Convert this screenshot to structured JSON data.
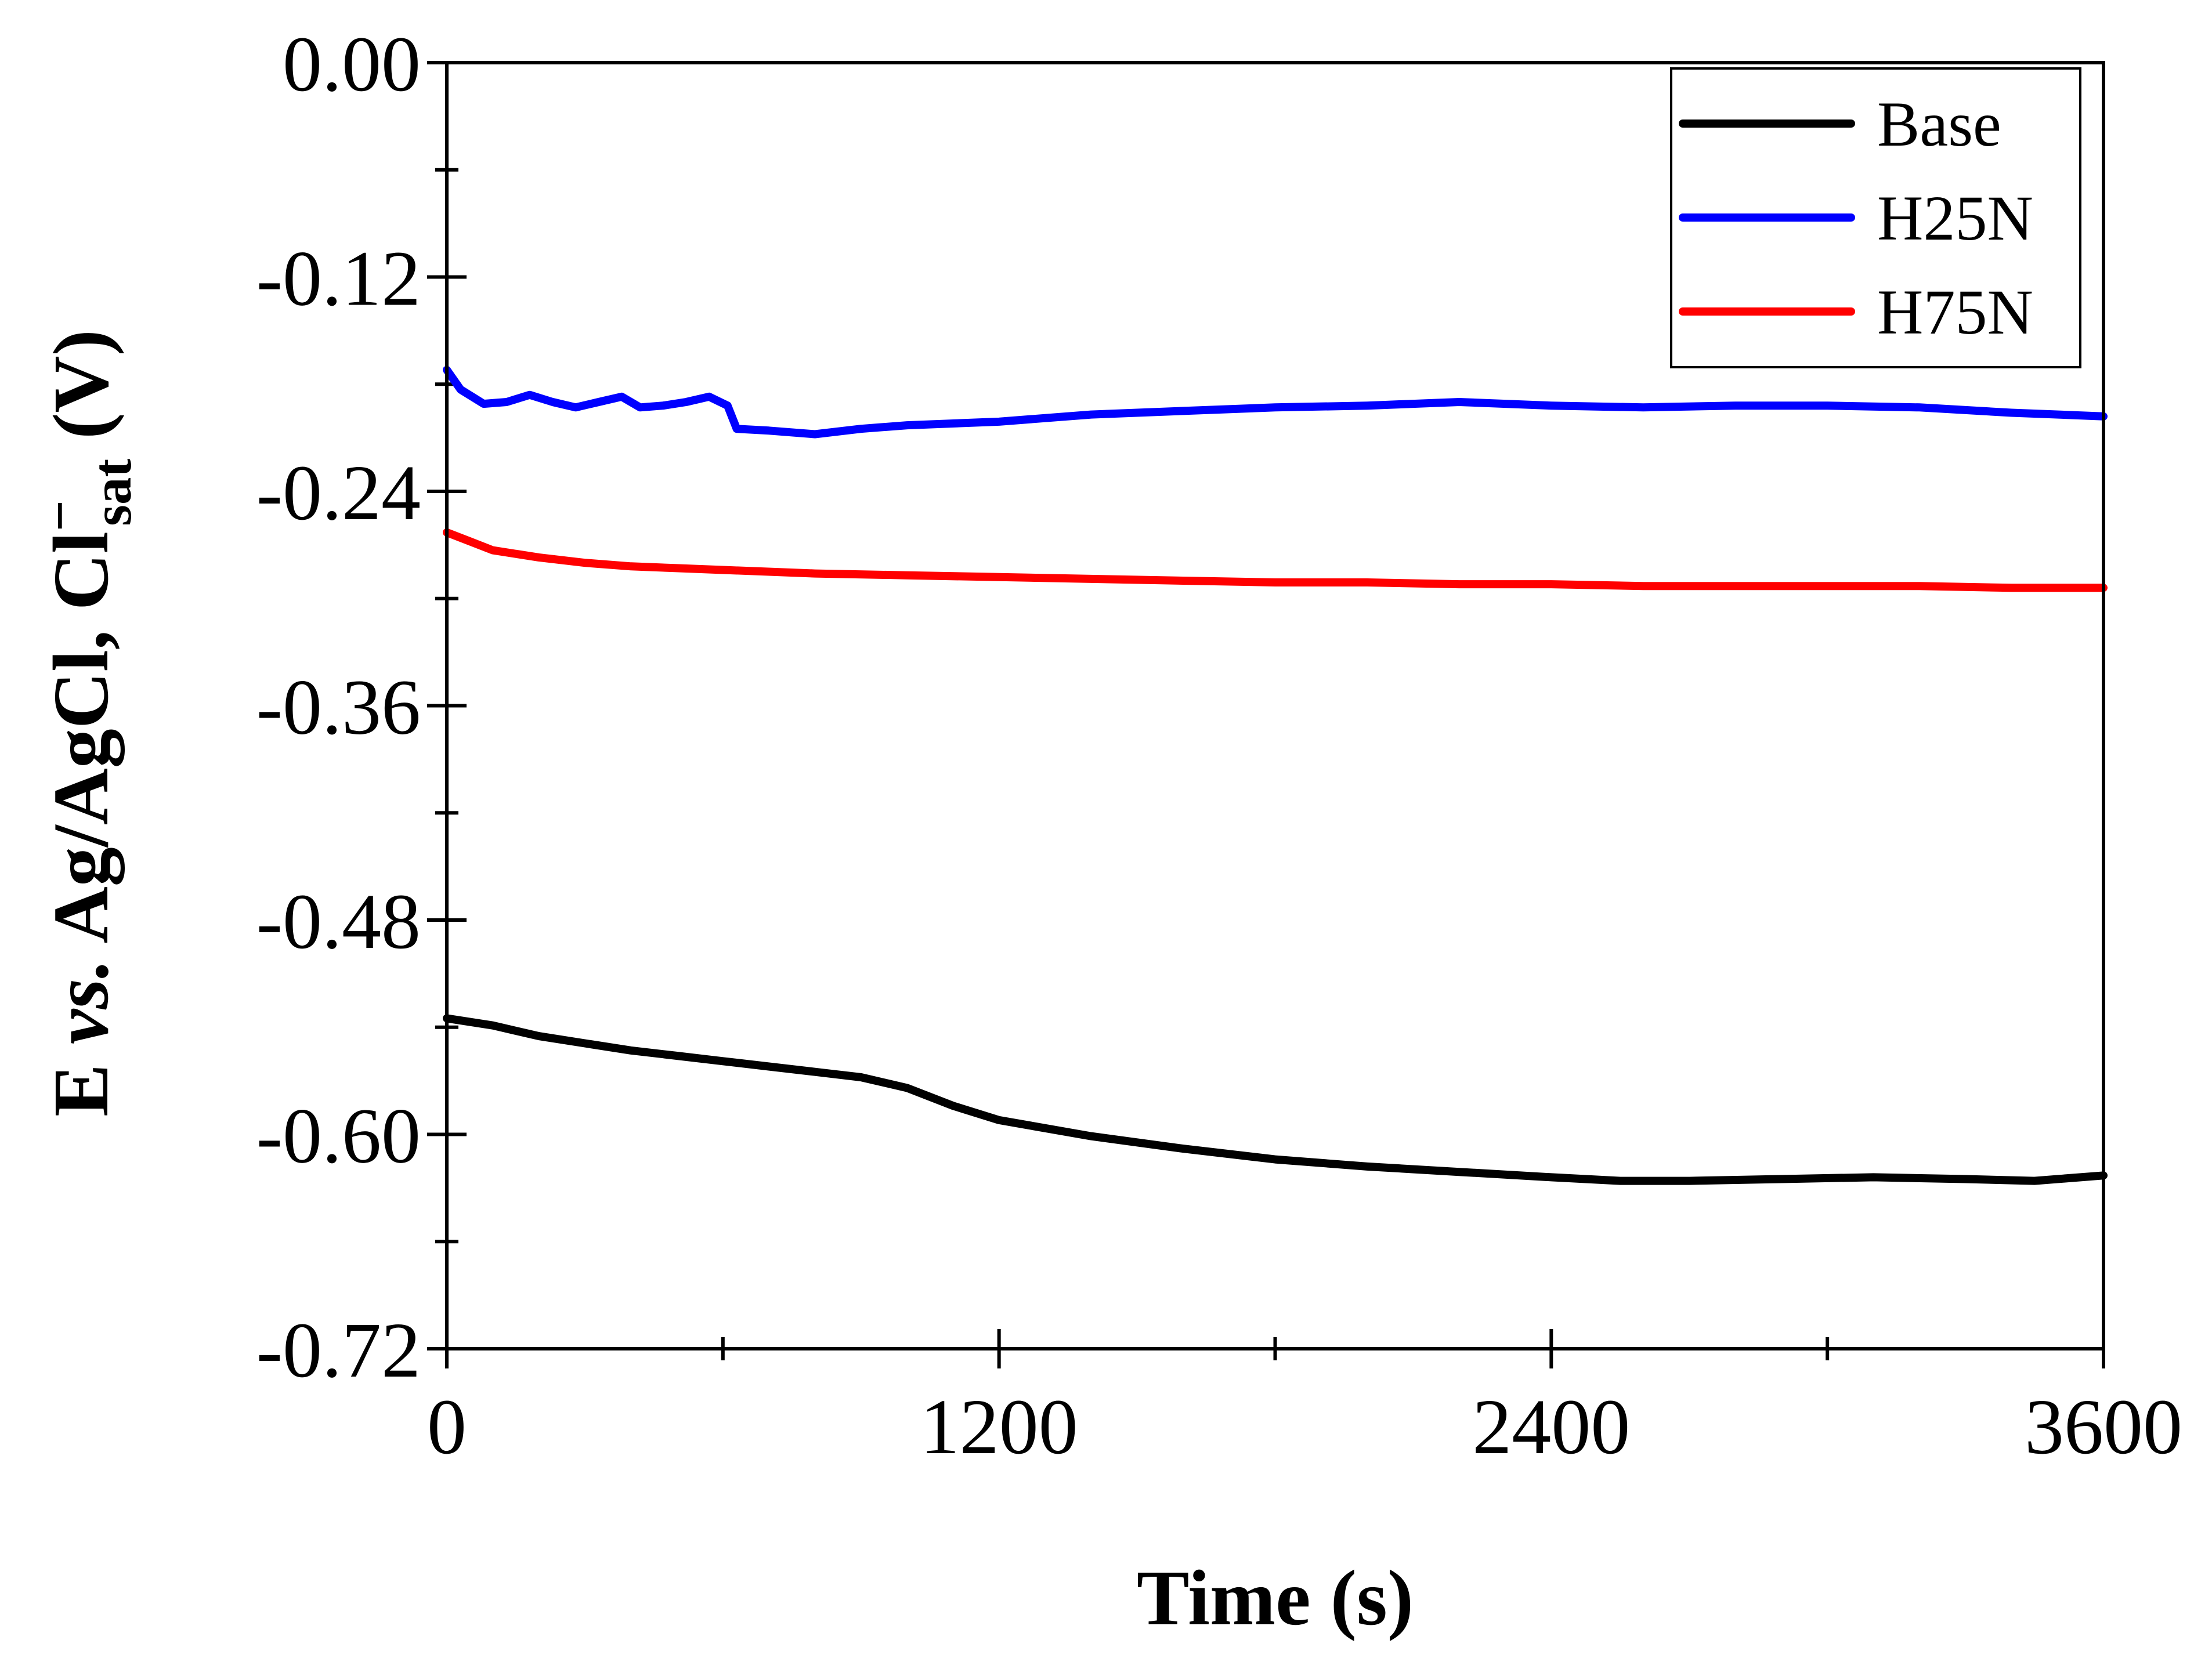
{
  "chart_data": {
    "type": "line",
    "title": "",
    "xlabel": "Time (s)",
    "ylabel": {
      "main": "E ",
      "italic": "vs.",
      "rest": " Ag/AgCl, Cl",
      "superscript": "−",
      "subscript": "sat",
      "unit": " (V)"
    },
    "xlim": [
      0,
      3600
    ],
    "ylim": [
      -0.72,
      0.0
    ],
    "xticks": [
      0,
      1200,
      2400,
      3600
    ],
    "xtick_labels": [
      "0",
      "1200",
      "2400",
      "3600"
    ],
    "yticks": [
      0.0,
      -0.12,
      -0.24,
      -0.36,
      -0.48,
      -0.6,
      -0.72
    ],
    "ytick_labels": [
      "0.00",
      "-0.12",
      "-0.24",
      "-0.36",
      "-0.48",
      "-0.60",
      "-0.72"
    ],
    "legend_position": "top-right",
    "series": [
      {
        "name": "Base",
        "color": "#000000",
        "x": [
          0,
          100,
          200,
          300,
          400,
          500,
          600,
          700,
          800,
          900,
          1000,
          1100,
          1200,
          1400,
          1600,
          1800,
          2000,
          2200,
          2400,
          2550,
          2700,
          2900,
          3100,
          3300,
          3450,
          3600
        ],
        "values": [
          -0.535,
          -0.539,
          -0.545,
          -0.549,
          -0.553,
          -0.556,
          -0.559,
          -0.562,
          -0.565,
          -0.568,
          -0.574,
          -0.584,
          -0.592,
          -0.601,
          -0.608,
          -0.614,
          -0.618,
          -0.621,
          -0.624,
          -0.626,
          -0.626,
          -0.625,
          -0.624,
          -0.625,
          -0.626,
          -0.623
        ]
      },
      {
        "name": "H25N",
        "color": "#0000FF",
        "x": [
          0,
          30,
          80,
          130,
          180,
          230,
          280,
          330,
          380,
          420,
          470,
          520,
          570,
          610,
          630,
          700,
          800,
          900,
          1000,
          1200,
          1400,
          1600,
          1800,
          2000,
          2200,
          2400,
          2600,
          2800,
          3000,
          3200,
          3400,
          3600
        ],
        "values": [
          -0.172,
          -0.183,
          -0.191,
          -0.19,
          -0.186,
          -0.19,
          -0.193,
          -0.19,
          -0.187,
          -0.193,
          -0.192,
          -0.19,
          -0.187,
          -0.192,
          -0.205,
          -0.206,
          -0.208,
          -0.205,
          -0.203,
          -0.201,
          -0.197,
          -0.195,
          -0.193,
          -0.192,
          -0.19,
          -0.192,
          -0.193,
          -0.192,
          -0.192,
          -0.193,
          -0.196,
          -0.198
        ]
      },
      {
        "name": "H75N",
        "color": "#FF0000",
        "x": [
          0,
          50,
          100,
          200,
          300,
          400,
          500,
          600,
          800,
          1000,
          1200,
          1400,
          1600,
          1800,
          2000,
          2200,
          2400,
          2600,
          2800,
          3000,
          3200,
          3400,
          3600
        ],
        "values": [
          -0.263,
          -0.268,
          -0.273,
          -0.277,
          -0.28,
          -0.282,
          -0.283,
          -0.284,
          -0.286,
          -0.287,
          -0.288,
          -0.289,
          -0.29,
          -0.291,
          -0.291,
          -0.292,
          -0.292,
          -0.293,
          -0.293,
          -0.293,
          -0.293,
          -0.294,
          -0.294
        ]
      }
    ]
  }
}
